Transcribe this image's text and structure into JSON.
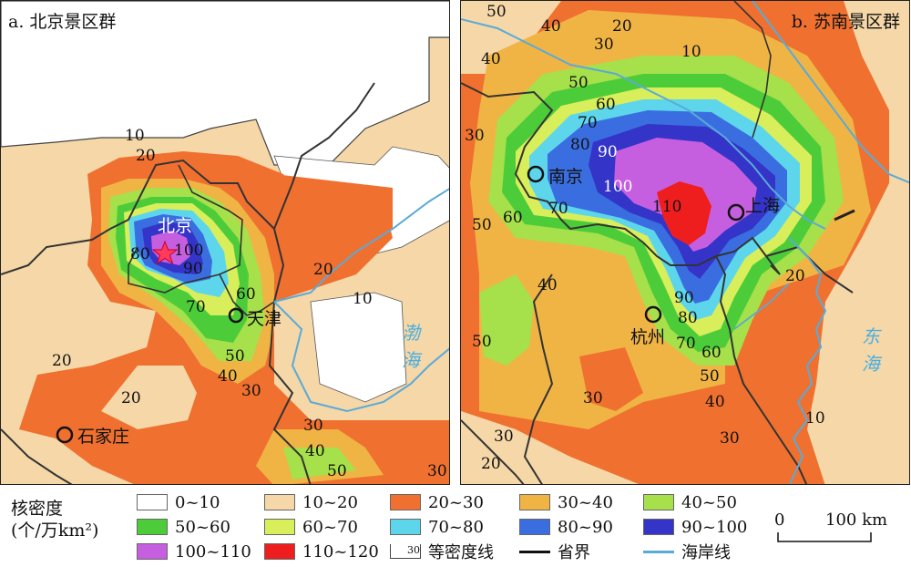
{
  "panels": {
    "a": {
      "title": "a. 北京景区群",
      "city_labels": [
        "北京",
        "天津",
        "石家庄"
      ],
      "sea_labels": [
        "渤",
        "海"
      ],
      "contour_labels": [
        "10",
        "20",
        "80",
        "100",
        "90",
        "70",
        "60",
        "50",
        "40",
        "30",
        "20",
        "10",
        "20",
        "20",
        "30",
        "40",
        "50",
        "30"
      ]
    },
    "b": {
      "title": "b. 苏南景区群",
      "city_labels": [
        "南京",
        "上海",
        "杭州"
      ],
      "sea_labels": [
        "东",
        "海"
      ],
      "contour_labels": [
        "50",
        "40",
        "30",
        "20",
        "10",
        "40",
        "50",
        "60",
        "70",
        "80",
        "90",
        "100",
        "110",
        "30",
        "50",
        "60",
        "70",
        "40",
        "50",
        "90",
        "80",
        "70",
        "60",
        "50",
        "40",
        "30",
        "30",
        "20",
        "20",
        "10",
        "30"
      ]
    }
  },
  "legend": {
    "title_line1": "核密度",
    "title_line2": "(个/万km²)",
    "classes": [
      {
        "label": "0~10",
        "color": "#ffffff"
      },
      {
        "label": "10~20",
        "color": "#f5d7a8"
      },
      {
        "label": "20~30",
        "color": "#f07030"
      },
      {
        "label": "30~40",
        "color": "#f0b445"
      },
      {
        "label": "40~50",
        "color": "#a6e04a"
      },
      {
        "label": "50~60",
        "color": "#4dcc3a"
      },
      {
        "label": "60~70",
        "color": "#d8ee5a"
      },
      {
        "label": "70~80",
        "color": "#5dd6ec"
      },
      {
        "label": "80~90",
        "color": "#3a6ee0"
      },
      {
        "label": "90~100",
        "color": "#3434c8"
      },
      {
        "label": "100~110",
        "color": "#c65ee0"
      },
      {
        "label": "110~120",
        "color": "#ee1e1e"
      }
    ],
    "contour_line": {
      "sample": "30",
      "label": "等密度线"
    },
    "province_line": {
      "label": "省界"
    },
    "coast_line": {
      "label": "海岸线",
      "color": "#5aaad8"
    },
    "scale": {
      "zero": "0",
      "value": "100 km"
    }
  }
}
